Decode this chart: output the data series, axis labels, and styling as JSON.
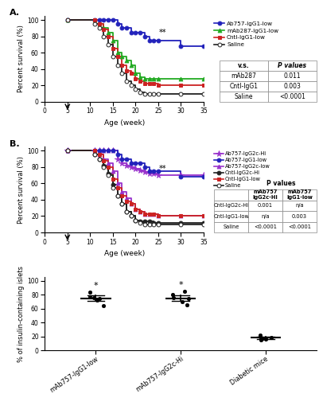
{
  "panel_A": {
    "ylabel": "Percent survival (%)",
    "xlabel": "Age (week)",
    "xlim": [
      0,
      35
    ],
    "ylim": [
      0,
      105
    ],
    "xticks": [
      0,
      5,
      10,
      15,
      20,
      25,
      30,
      35
    ],
    "yticks": [
      0,
      20,
      40,
      60,
      80,
      100
    ],
    "double_star_x": 26,
    "double_star_y": 80,
    "series": [
      {
        "label": "Ab757-IgG1-low",
        "color": "#2222bb",
        "marker": "o",
        "fillstyle": "full",
        "x": [
          5,
          11,
          12,
          13,
          14,
          15,
          16,
          17,
          18,
          19,
          20,
          21,
          22,
          23,
          24,
          25,
          30,
          35
        ],
        "y": [
          100,
          100,
          100,
          100,
          100,
          100,
          95,
          90,
          90,
          85,
          85,
          85,
          80,
          75,
          75,
          75,
          68,
          68
        ]
      },
      {
        "label": "mAb287-IgG1-low",
        "color": "#22aa22",
        "marker": "^",
        "fillstyle": "full",
        "x": [
          5,
          11,
          12,
          13,
          14,
          15,
          16,
          17,
          18,
          19,
          20,
          21,
          22,
          23,
          24,
          25,
          30,
          35
        ],
        "y": [
          100,
          100,
          95,
          90,
          85,
          75,
          60,
          55,
          50,
          45,
          35,
          30,
          28,
          28,
          28,
          28,
          28,
          28
        ]
      },
      {
        "label": "Cntl-IgG1-low",
        "color": "#cc2222",
        "marker": "s",
        "fillstyle": "full",
        "x": [
          5,
          11,
          12,
          13,
          14,
          15,
          16,
          17,
          18,
          19,
          20,
          21,
          22,
          23,
          24,
          25,
          30,
          35
        ],
        "y": [
          100,
          100,
          95,
          88,
          80,
          65,
          55,
          45,
          38,
          35,
          28,
          25,
          22,
          22,
          22,
          20,
          20,
          20
        ]
      },
      {
        "label": "Saline",
        "color": "#222222",
        "marker": "o",
        "fillstyle": "none",
        "x": [
          5,
          11,
          12,
          13,
          14,
          15,
          16,
          17,
          18,
          19,
          20,
          21,
          22,
          23,
          24,
          25,
          30,
          35
        ],
        "y": [
          100,
          95,
          90,
          80,
          70,
          55,
          45,
          35,
          25,
          20,
          15,
          12,
          10,
          10,
          10,
          10,
          10,
          10
        ]
      }
    ],
    "table": {
      "col_labels": [
        "v.s.",
        "P values"
      ],
      "rows": [
        [
          "mAb287",
          "0.011"
        ],
        [
          "Cntl-IgG1",
          "0.003"
        ],
        [
          "Saline",
          "<0.0001"
        ]
      ]
    }
  },
  "panel_B": {
    "ylabel": "Percent survival (%)",
    "xlabel": "Age (week)",
    "xlim": [
      0,
      35
    ],
    "ylim": [
      0,
      105
    ],
    "xticks": [
      0,
      5,
      10,
      15,
      20,
      25,
      30,
      35
    ],
    "yticks": [
      0,
      20,
      40,
      60,
      80,
      100
    ],
    "double_star_x": 26,
    "double_star_y": 73,
    "series": [
      {
        "label": "Ab757-IgG2c-Hi",
        "color": "#9933cc",
        "marker": "*",
        "fillstyle": "full",
        "x": [
          5,
          11,
          12,
          13,
          14,
          15,
          16,
          17,
          18,
          19,
          20,
          21,
          22,
          23,
          24,
          25,
          30,
          35
        ],
        "y": [
          100,
          100,
          100,
          100,
          100,
          100,
          90,
          85,
          82,
          80,
          78,
          76,
          74,
          72,
          72,
          70,
          70,
          70
        ]
      },
      {
        "label": "Ab757-IgG1-low",
        "color": "#2222bb",
        "marker": "o",
        "fillstyle": "full",
        "x": [
          5,
          11,
          12,
          13,
          14,
          15,
          16,
          17,
          18,
          19,
          20,
          21,
          22,
          23,
          24,
          25,
          30,
          35
        ],
        "y": [
          100,
          100,
          100,
          100,
          100,
          100,
          95,
          90,
          90,
          85,
          85,
          85,
          80,
          75,
          75,
          75,
          68,
          68
        ]
      },
      {
        "label": "Ab757-IgG2c-low",
        "color": "#9933cc",
        "marker": "^",
        "fillstyle": "full",
        "x": [
          5,
          11,
          12,
          13,
          14,
          15,
          16,
          17,
          18,
          19,
          20,
          21,
          22,
          23,
          24,
          25,
          30,
          35
        ],
        "y": [
          100,
          100,
          95,
          90,
          85,
          75,
          60,
          50,
          42,
          35,
          28,
          25,
          22,
          22,
          22,
          20,
          20,
          20
        ]
      },
      {
        "label": "Cntl-IgG2c-Hi",
        "color": "#222222",
        "marker": "o",
        "fillstyle": "full",
        "x": [
          5,
          11,
          12,
          13,
          14,
          15,
          16,
          17,
          18,
          19,
          20,
          21,
          22,
          23,
          24,
          25,
          30,
          35
        ],
        "y": [
          100,
          95,
          90,
          82,
          72,
          58,
          45,
          35,
          25,
          20,
          15,
          14,
          14,
          14,
          12,
          12,
          12,
          12
        ]
      },
      {
        "label": "Cntl-IgG1-low",
        "color": "#cc2222",
        "marker": "s",
        "fillstyle": "full",
        "x": [
          5,
          11,
          12,
          13,
          14,
          15,
          16,
          17,
          18,
          19,
          20,
          21,
          22,
          23,
          24,
          25,
          30,
          35
        ],
        "y": [
          100,
          100,
          95,
          88,
          80,
          65,
          55,
          45,
          38,
          35,
          28,
          25,
          22,
          22,
          22,
          20,
          20,
          20
        ]
      },
      {
        "label": "Saline",
        "color": "#222222",
        "marker": "o",
        "fillstyle": "none",
        "x": [
          5,
          11,
          12,
          13,
          14,
          15,
          16,
          17,
          18,
          19,
          20,
          21,
          22,
          23,
          24,
          25,
          30,
          35
        ],
        "y": [
          100,
          95,
          90,
          80,
          70,
          55,
          45,
          35,
          25,
          20,
          15,
          12,
          10,
          10,
          10,
          10,
          10,
          10
        ]
      }
    ],
    "table": {
      "subheader": [
        "mAb757\nIgG2c-Hi",
        "mAb757\nIgG1-low"
      ],
      "rows": [
        [
          "Cntl-IgG2c-Hi",
          "0.001",
          "n/a"
        ],
        [
          "Cntl-IgG1-low",
          "n/a",
          "0.003"
        ],
        [
          "Saline",
          "<0.0001",
          "<0.0001"
        ]
      ]
    }
  },
  "panel_C": {
    "ylabel": "% of insulin-containing islets",
    "groups": [
      {
        "label": "mAb757-IgG1-low",
        "x": 1,
        "points": [
          76,
          64,
          75,
          72,
          84,
          77
        ],
        "mean": 75,
        "sem": 4,
        "has_star": true
      },
      {
        "label": "mAb757-IgG2c-Hi",
        "x": 2,
        "points": [
          76,
          65,
          70,
          85,
          80,
          75
        ],
        "mean": 75,
        "sem": 4,
        "has_star": true
      },
      {
        "label": "Diabetic mice",
        "x": 3,
        "points": [
          18,
          15,
          20,
          22,
          17,
          16
        ],
        "mean": 18,
        "sem": 1.5,
        "has_star": false
      }
    ],
    "ylim": [
      0,
      105
    ],
    "yticks": [
      0,
      20,
      40,
      60,
      80,
      100
    ]
  }
}
